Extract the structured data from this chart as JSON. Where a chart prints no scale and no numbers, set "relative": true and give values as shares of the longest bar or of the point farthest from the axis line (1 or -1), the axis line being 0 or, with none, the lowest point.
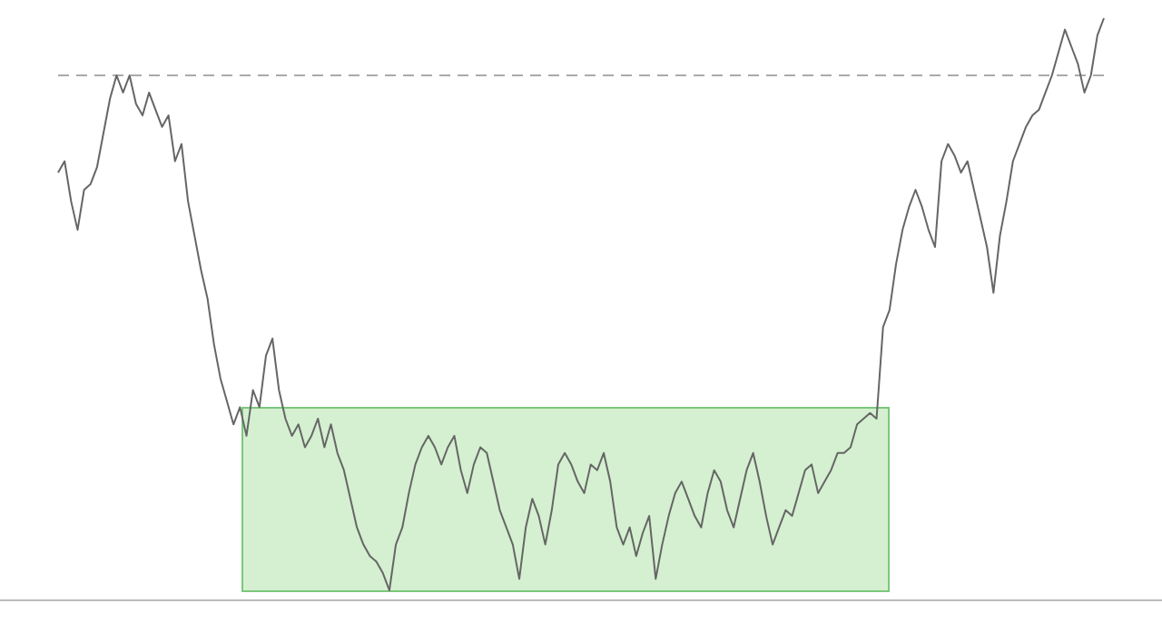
{
  "chart_data": {
    "type": "line",
    "relative": true,
    "ref_lines": [
      {
        "axis": "y",
        "value": 0.9,
        "color": "#aaaaaa",
        "line_style": "dashed"
      }
    ],
    "legend": false,
    "marker": "none",
    "line_style": "solid",
    "categories": [
      null,
      null,
      null,
      null,
      null,
      null,
      null,
      null,
      null,
      null,
      null,
      null,
      null,
      null,
      null,
      null,
      null,
      null,
      null,
      null,
      null,
      null,
      null,
      null,
      null,
      null,
      null,
      null,
      null,
      null,
      null,
      null,
      null,
      null,
      null,
      null,
      null,
      null,
      null,
      null,
      null,
      null,
      null,
      null,
      null,
      null,
      null,
      null,
      null,
      null,
      null,
      null,
      null,
      null,
      null,
      null,
      null,
      null,
      null,
      null,
      null,
      null,
      null,
      null,
      null,
      null,
      null,
      null,
      null,
      null,
      null,
      null,
      null,
      null,
      null,
      null,
      null,
      null,
      null,
      null,
      null,
      null,
      null,
      null,
      null,
      null,
      null,
      null,
      null,
      null,
      null,
      null,
      null,
      null,
      null,
      null,
      null,
      null,
      null,
      null,
      null,
      null,
      null,
      null,
      null,
      null,
      null,
      null,
      null,
      null,
      null,
      null,
      null,
      null,
      null,
      null,
      null,
      null,
      null,
      null,
      null,
      null,
      null,
      null,
      null,
      null,
      null,
      null,
      null,
      null,
      null,
      null,
      null,
      null,
      null,
      null,
      null,
      null,
      null,
      null,
      null,
      null,
      null,
      null,
      null,
      null,
      null,
      null,
      null,
      null,
      null,
      null,
      null,
      null,
      null,
      null,
      null,
      null,
      null,
      null,
      null,
      null
    ],
    "series": [
      {
        "color": "#666666",
        "values": [
          0.73,
          0.75,
          0.68,
          0.63,
          0.7,
          0.71,
          0.74,
          0.8,
          0.86,
          0.9,
          0.87,
          0.9,
          0.85,
          0.83,
          0.87,
          0.84,
          0.81,
          0.83,
          0.75,
          0.78,
          0.68,
          0.62,
          0.56,
          0.51,
          0.43,
          0.37,
          0.33,
          0.29,
          0.32,
          0.27,
          0.35,
          0.32,
          0.41,
          0.44,
          0.35,
          0.3,
          0.27,
          0.29,
          0.25,
          0.27,
          0.3,
          0.25,
          0.29,
          0.24,
          0.21,
          0.16,
          0.11,
          0.08,
          0.06,
          0.05,
          0.03,
          0,
          0.08,
          0.11,
          0.17,
          0.22,
          0.25,
          0.27,
          0.25,
          0.22,
          0.25,
          0.27,
          0.21,
          0.17,
          0.22,
          0.25,
          0.24,
          0.19,
          0.14,
          0.11,
          0.08,
          0.02,
          0.11,
          0.16,
          0.13,
          0.08,
          0.14,
          0.22,
          0.24,
          0.22,
          0.19,
          0.17,
          0.22,
          0.21,
          0.24,
          0.19,
          0.11,
          0.08,
          0.11,
          0.06,
          0.1,
          0.13,
          0.02,
          0.08,
          0.13,
          0.17,
          0.19,
          0.16,
          0.13,
          0.11,
          0.17,
          0.21,
          0.19,
          0.14,
          0.11,
          0.16,
          0.21,
          0.24,
          0.19,
          0.13,
          0.08,
          0.11,
          0.14,
          0.13,
          0.17,
          0.21,
          0.22,
          0.17,
          0.19,
          0.21,
          0.24,
          0.24,
          0.25,
          0.29,
          0.3,
          0.31,
          0.3,
          0.46,
          0.49,
          0.57,
          0.63,
          0.67,
          0.7,
          0.67,
          0.63,
          0.6,
          0.75,
          0.78,
          0.76,
          0.73,
          0.75,
          0.7,
          0.65,
          0.6,
          0.52,
          0.62,
          0.68,
          0.75,
          0.78,
          0.81,
          0.83,
          0.84,
          0.87,
          0.9,
          0.94,
          0.98,
          0.95,
          0.92,
          0.87,
          0.9,
          0.97,
          1
        ]
      }
    ]
  }
}
